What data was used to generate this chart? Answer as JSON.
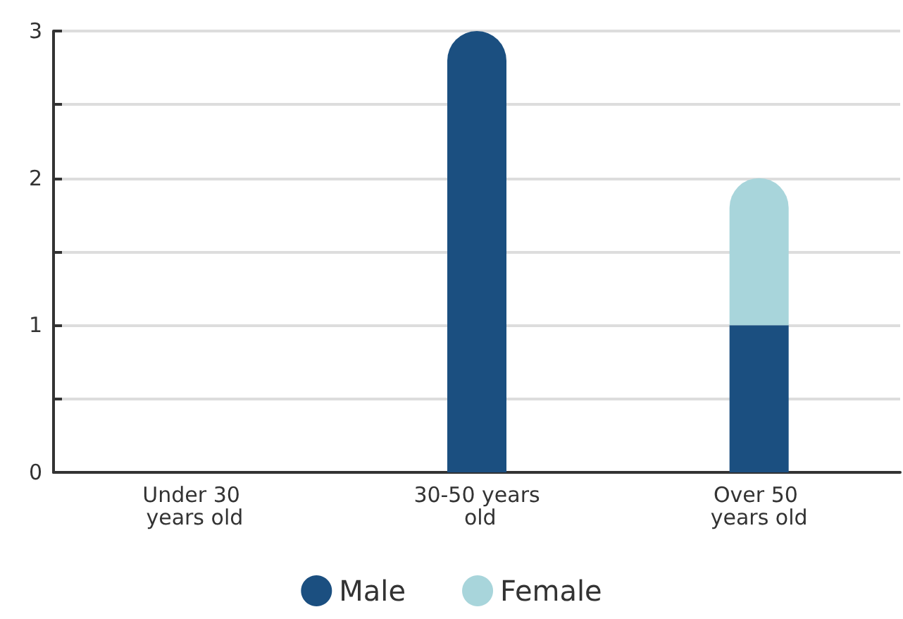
{
  "chart_data": {
    "type": "bar",
    "stacked": true,
    "categories": [
      "Under 30 years old",
      "30-50 years old",
      "Over 50 years old"
    ],
    "series": [
      {
        "name": "Male",
        "color": "#1b4f80",
        "values": [
          0,
          3,
          1
        ]
      },
      {
        "name": "Female",
        "color": "#a8d5db",
        "values": [
          0,
          0,
          1
        ]
      }
    ],
    "ylim": [
      0,
      3
    ],
    "yticks": [
      0,
      {
        "value": 0.5,
        "label": null
      },
      1,
      {
        "value": 1.5,
        "label": null
      },
      2,
      {
        "value": 2.5,
        "label": null
      },
      3
    ],
    "grid": "y",
    "legend": "bottom"
  }
}
